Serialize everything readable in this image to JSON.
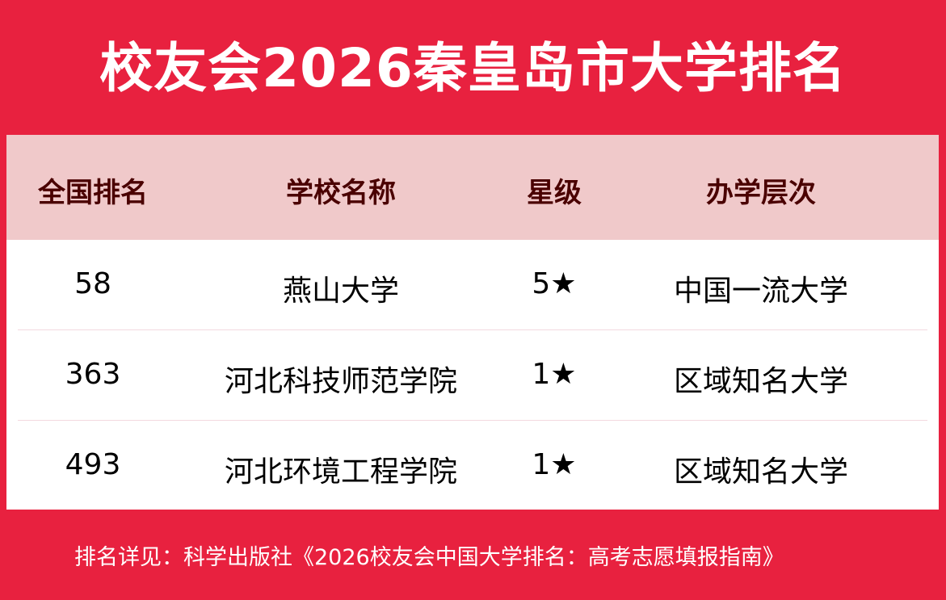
{
  "title": "校友会2026秦皇岛市大学排名",
  "table": {
    "headers": [
      "全国排名",
      "学校名称",
      "星级",
      "办学层次"
    ],
    "rows": [
      [
        "58",
        "燕山大学",
        "5★",
        "中国一流大学"
      ],
      [
        "363",
        "河北科技师范学院",
        "1★",
        "区域知名大学"
      ],
      [
        "493",
        "河北环境工程学院",
        "1★",
        "区域知名大学"
      ]
    ]
  },
  "footer": "排名详见：科学出版社《2026校友会中国大学排名：高考志愿填报指南》",
  "colors": {
    "brand_red": "#e8213f",
    "header_bg": "#f0c9ca",
    "header_text": "#4a0000"
  }
}
